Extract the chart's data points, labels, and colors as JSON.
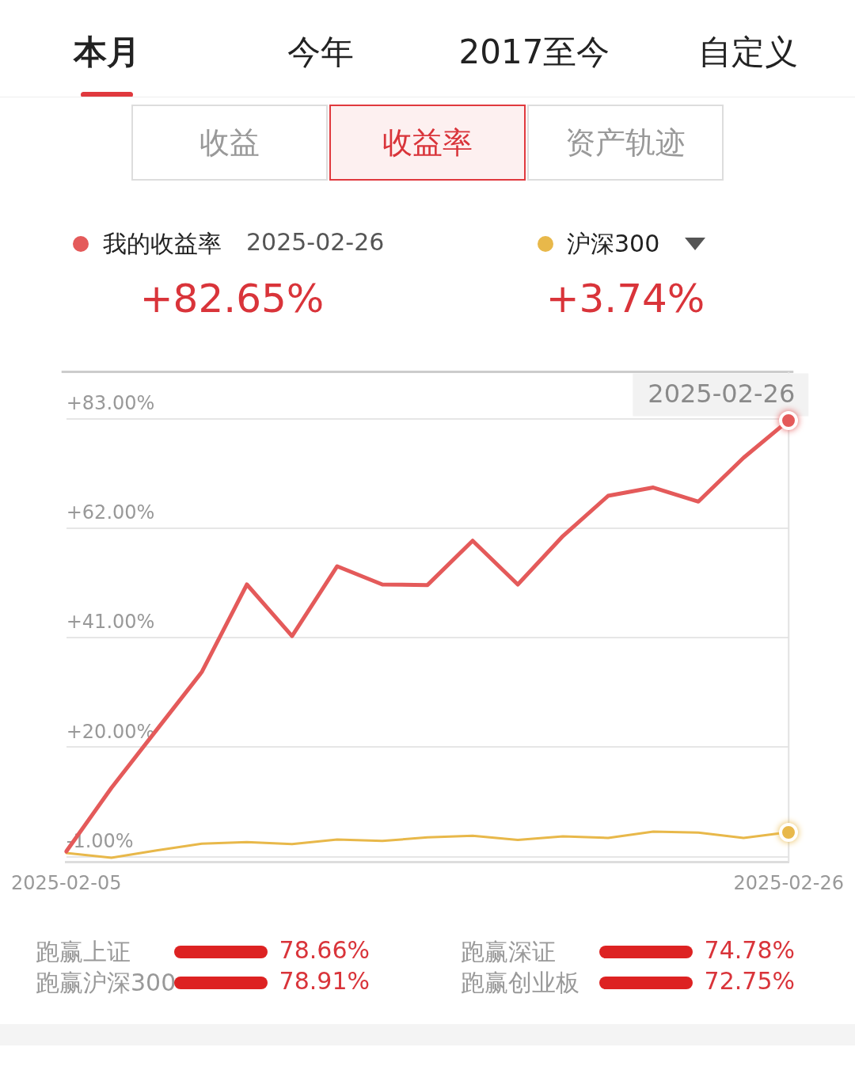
{
  "chart_data": {
    "type": "line",
    "categories": [
      "2025-02-05",
      null,
      null,
      null,
      null,
      null,
      null,
      null,
      null,
      null,
      null,
      null,
      null,
      null,
      null,
      null,
      "2025-02-26"
    ],
    "series": [
      {
        "name": "我的收益率",
        "color": "#e45a5a",
        "values": [
          0,
          12.2,
          23.3,
          34.4,
          51.2,
          41.3,
          54.7,
          51.2,
          51.1,
          59.6,
          51.2,
          60.5,
          68.2,
          69.8,
          67.1,
          75.5,
          82.7
        ]
      },
      {
        "name": "沪深300",
        "color": "#e8b84a",
        "values": [
          -0.3,
          -1.2,
          0.2,
          1.5,
          1.8,
          1.4,
          2.3,
          2.0,
          2.7,
          3.0,
          2.2,
          2.9,
          2.6,
          3.8,
          3.6,
          2.6,
          3.7
        ]
      }
    ],
    "ylim": [
      -2,
      92
    ],
    "yticks": [
      {
        "value": -1,
        "label": "-1.00%"
      },
      {
        "value": 20,
        "label": "+20.00%"
      },
      {
        "value": 41,
        "label": "+41.00%"
      },
      {
        "value": 62,
        "label": "+62.00%"
      },
      {
        "value": 83,
        "label": "+83.00%"
      }
    ],
    "grid": "y",
    "legend": "top",
    "annotations": [
      "本月",
      "今年",
      "2017至今",
      "自定义",
      "收益",
      "收益率",
      "资产轨迹",
      "2025-02-26",
      "+82.65%",
      "+3.74%",
      "2025-02-26",
      "跑赢上证",
      "78.66%",
      "跑赢深证",
      "74.78%",
      "跑赢沪深300",
      "78.91%",
      "跑赢创业板",
      "72.75%"
    ]
  }
}
